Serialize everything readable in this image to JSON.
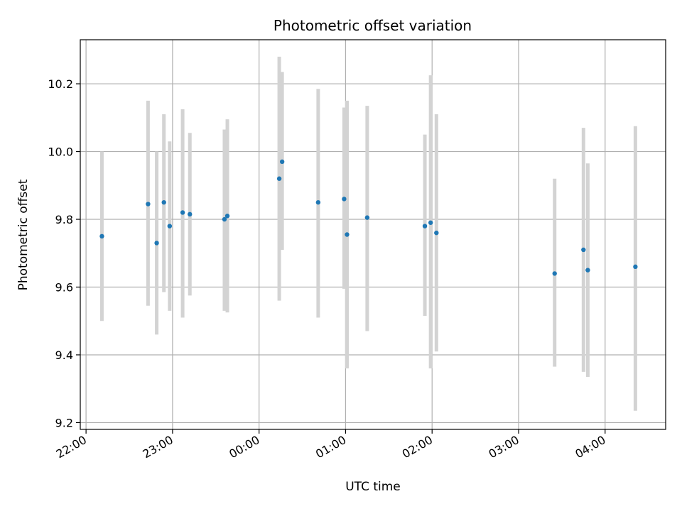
{
  "chart_data": {
    "type": "scatter",
    "title": "Photometric offset variation",
    "xlabel": "UTC time",
    "ylabel": "Photometric offset",
    "x_ticks": [
      {
        "time": "22:00",
        "label": "22:00"
      },
      {
        "time": "23:00",
        "label": "23:00"
      },
      {
        "time": "00:00",
        "label": "00:00"
      },
      {
        "time": "01:00",
        "label": "01:00"
      },
      {
        "time": "02:00",
        "label": "02:00"
      },
      {
        "time": "03:00",
        "label": "03:00"
      },
      {
        "time": "04:00",
        "label": "04:00"
      }
    ],
    "y_ticks": [
      9.2,
      9.4,
      9.6,
      9.8,
      10.0,
      10.2
    ],
    "y_tick_labels": [
      "9.2",
      "9.4",
      "9.6",
      "9.8",
      "10.0",
      "10.2"
    ],
    "xlim": [
      "21:56",
      "04:42"
    ],
    "ylim": [
      9.18,
      10.33
    ],
    "grid": true,
    "error_bar_color": "#d3d3d3",
    "point_color": "#1f77b4",
    "points": [
      {
        "time": "22:11",
        "y": 9.75,
        "ylow": 9.5,
        "yhigh": 10.0
      },
      {
        "time": "22:43",
        "y": 9.845,
        "ylow": 9.545,
        "yhigh": 10.15
      },
      {
        "time": "22:49",
        "y": 9.73,
        "ylow": 9.46,
        "yhigh": 10.0
      },
      {
        "time": "22:54",
        "y": 9.85,
        "ylow": 9.585,
        "yhigh": 10.11
      },
      {
        "time": "22:58",
        "y": 9.78,
        "ylow": 9.53,
        "yhigh": 10.03
      },
      {
        "time": "23:07",
        "y": 9.82,
        "ylow": 9.51,
        "yhigh": 10.125
      },
      {
        "time": "23:12",
        "y": 9.815,
        "ylow": 9.575,
        "yhigh": 10.055
      },
      {
        "time": "23:36",
        "y": 9.8,
        "ylow": 9.53,
        "yhigh": 10.065
      },
      {
        "time": "23:38",
        "y": 9.81,
        "ylow": 9.525,
        "yhigh": 10.095
      },
      {
        "time": "00:14",
        "y": 9.92,
        "ylow": 9.56,
        "yhigh": 10.28
      },
      {
        "time": "00:16",
        "y": 9.97,
        "ylow": 9.71,
        "yhigh": 10.235
      },
      {
        "time": "00:41",
        "y": 9.85,
        "ylow": 9.51,
        "yhigh": 10.185
      },
      {
        "time": "00:59",
        "y": 9.86,
        "ylow": 9.595,
        "yhigh": 10.13
      },
      {
        "time": "01:01",
        "y": 9.755,
        "ylow": 9.36,
        "yhigh": 10.15
      },
      {
        "time": "01:15",
        "y": 9.805,
        "ylow": 9.47,
        "yhigh": 10.135
      },
      {
        "time": "01:55",
        "y": 9.78,
        "ylow": 9.515,
        "yhigh": 10.05
      },
      {
        "time": "01:59",
        "y": 9.79,
        "ylow": 9.36,
        "yhigh": 10.225
      },
      {
        "time": "02:03",
        "y": 9.76,
        "ylow": 9.41,
        "yhigh": 10.11
      },
      {
        "time": "03:25",
        "y": 9.64,
        "ylow": 9.365,
        "yhigh": 9.92
      },
      {
        "time": "03:45",
        "y": 9.71,
        "ylow": 9.35,
        "yhigh": 10.07
      },
      {
        "time": "03:48",
        "y": 9.65,
        "ylow": 9.335,
        "yhigh": 9.965
      },
      {
        "time": "04:21",
        "y": 9.66,
        "ylow": 9.235,
        "yhigh": 10.075
      }
    ]
  }
}
